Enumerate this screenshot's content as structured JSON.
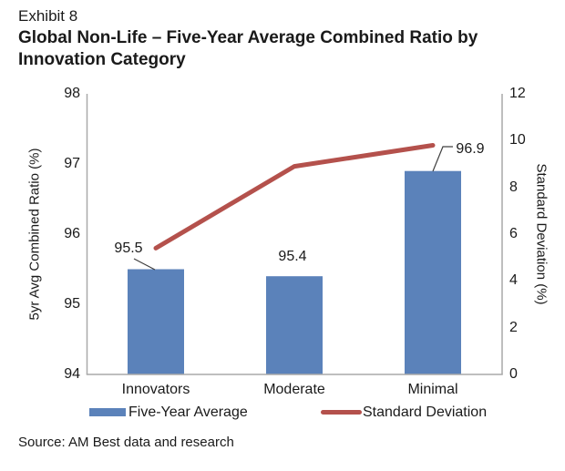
{
  "header": {
    "exhibit": "Exhibit 8",
    "title": "Global Non-Life – Five-Year Average Combined Ratio by Innovation Category"
  },
  "chart_data": {
    "type": "bar",
    "subtype": "combo-bar-line-dual-axis",
    "categories": [
      "Innovators",
      "Moderate",
      "Minimal"
    ],
    "series": [
      {
        "name": "Five-Year Average",
        "render": "bar",
        "axis": "left",
        "values": [
          95.5,
          95.4,
          96.9
        ],
        "labels": [
          "95.5",
          "95.4",
          "96.9"
        ],
        "color": "#5B82BA"
      },
      {
        "name": "Standard Deviation",
        "render": "line",
        "axis": "right",
        "values": [
          5.4,
          8.9,
          9.8
        ],
        "color": "#B4514C"
      }
    ],
    "left_axis": {
      "label": "5yr Avg Combined Ratio (%)",
      "min": 94,
      "max": 98,
      "ticks": [
        "98",
        "97",
        "96",
        "95",
        "94"
      ]
    },
    "right_axis": {
      "label": "Standard Deviation (%)",
      "min": 0,
      "max": 12,
      "ticks": [
        "12",
        "10",
        "8",
        "6",
        "4",
        "2",
        "0"
      ]
    },
    "grid": false,
    "legend_position": "bottom"
  },
  "legend": {
    "bar_label": "Five-Year Average",
    "line_label": "Standard Deviation"
  },
  "source": "Source: AM Best data and research",
  "colors": {
    "bar": "#5B82BA",
    "line": "#B4514C",
    "axis": "#A9A9A9",
    "text": "#1A1A1A",
    "leader": "#404040"
  }
}
